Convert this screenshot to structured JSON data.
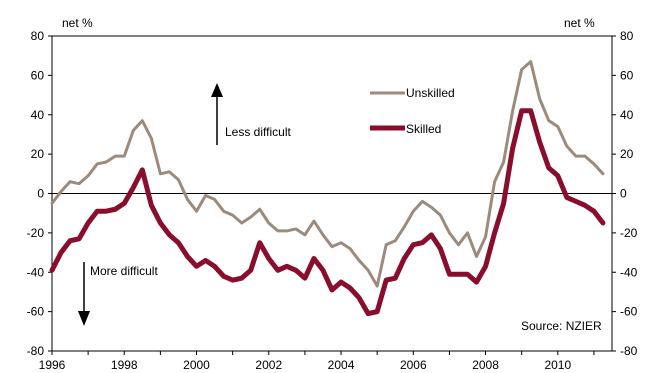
{
  "chart_data": {
    "type": "line",
    "title": "",
    "ylabel_left": "net %",
    "ylabel_right": "net %",
    "xlabel": "",
    "x_ticks": [
      "1996",
      "1998",
      "2000",
      "2002",
      "2004",
      "2006",
      "2008",
      "2010"
    ],
    "ylim": [
      -80,
      80
    ],
    "y_ticks": [
      -80,
      -60,
      -40,
      -20,
      0,
      20,
      40,
      60,
      80
    ],
    "xlim": [
      1996,
      2011.5
    ],
    "grid": false,
    "zero_line": true,
    "legend_position": "top-center",
    "series": [
      {
        "name": "Unskilled",
        "color": "#9c8b7d",
        "points": [
          [
            1996.0,
            -5
          ],
          [
            1996.25,
            1
          ],
          [
            1996.5,
            6
          ],
          [
            1996.75,
            5
          ],
          [
            1997.0,
            9
          ],
          [
            1997.25,
            15
          ],
          [
            1997.5,
            16
          ],
          [
            1997.75,
            19
          ],
          [
            1998.0,
            19
          ],
          [
            1998.25,
            32
          ],
          [
            1998.5,
            37
          ],
          [
            1998.75,
            28
          ],
          [
            1999.0,
            10
          ],
          [
            1999.25,
            11
          ],
          [
            1999.5,
            7
          ],
          [
            1999.75,
            -3
          ],
          [
            2000.0,
            -9
          ],
          [
            2000.25,
            -1
          ],
          [
            2000.5,
            -3
          ],
          [
            2000.75,
            -9
          ],
          [
            2001.0,
            -11
          ],
          [
            2001.25,
            -15
          ],
          [
            2001.5,
            -12
          ],
          [
            2001.75,
            -8
          ],
          [
            2002.0,
            -15
          ],
          [
            2002.25,
            -19
          ],
          [
            2002.5,
            -19
          ],
          [
            2002.75,
            -18
          ],
          [
            2003.0,
            -21
          ],
          [
            2003.25,
            -14
          ],
          [
            2003.5,
            -21
          ],
          [
            2003.75,
            -27
          ],
          [
            2004.0,
            -25
          ],
          [
            2004.25,
            -28
          ],
          [
            2004.5,
            -34
          ],
          [
            2004.75,
            -39
          ],
          [
            2005.0,
            -47
          ],
          [
            2005.25,
            -26
          ],
          [
            2005.5,
            -24
          ],
          [
            2005.75,
            -17
          ],
          [
            2006.0,
            -9
          ],
          [
            2006.25,
            -4
          ],
          [
            2006.5,
            -7
          ],
          [
            2006.75,
            -11
          ],
          [
            2007.0,
            -20
          ],
          [
            2007.25,
            -26
          ],
          [
            2007.5,
            -20
          ],
          [
            2007.75,
            -32
          ],
          [
            2008.0,
            -22
          ],
          [
            2008.25,
            6
          ],
          [
            2008.5,
            16
          ],
          [
            2008.75,
            42
          ],
          [
            2009.0,
            63
          ],
          [
            2009.25,
            67
          ],
          [
            2009.5,
            48
          ],
          [
            2009.75,
            37
          ],
          [
            2010.0,
            34
          ],
          [
            2010.25,
            24
          ],
          [
            2010.5,
            19
          ],
          [
            2010.75,
            19
          ],
          [
            2011.0,
            15
          ],
          [
            2011.25,
            10
          ]
        ]
      },
      {
        "name": "Skilled",
        "color": "#8b0d2e",
        "points": [
          [
            1996.0,
            -39
          ],
          [
            1996.25,
            -30
          ],
          [
            1996.5,
            -24
          ],
          [
            1996.75,
            -23
          ],
          [
            1997.0,
            -15
          ],
          [
            1997.25,
            -9
          ],
          [
            1997.5,
            -9
          ],
          [
            1997.75,
            -8
          ],
          [
            1998.0,
            -5
          ],
          [
            1998.25,
            3
          ],
          [
            1998.5,
            12
          ],
          [
            1998.75,
            -6
          ],
          [
            1999.0,
            -15
          ],
          [
            1999.25,
            -21
          ],
          [
            1999.5,
            -25
          ],
          [
            1999.75,
            -32
          ],
          [
            2000.0,
            -37
          ],
          [
            2000.25,
            -34
          ],
          [
            2000.5,
            -37
          ],
          [
            2000.75,
            -42
          ],
          [
            2001.0,
            -44
          ],
          [
            2001.25,
            -43
          ],
          [
            2001.5,
            -39
          ],
          [
            2001.75,
            -25
          ],
          [
            2002.0,
            -33
          ],
          [
            2002.25,
            -39
          ],
          [
            2002.5,
            -37
          ],
          [
            2002.75,
            -39
          ],
          [
            2003.0,
            -43
          ],
          [
            2003.25,
            -33
          ],
          [
            2003.5,
            -39
          ],
          [
            2003.75,
            -49
          ],
          [
            2004.0,
            -45
          ],
          [
            2004.25,
            -48
          ],
          [
            2004.5,
            -53
          ],
          [
            2004.75,
            -61
          ],
          [
            2005.0,
            -60
          ],
          [
            2005.25,
            -44
          ],
          [
            2005.5,
            -43
          ],
          [
            2005.75,
            -33
          ],
          [
            2006.0,
            -26
          ],
          [
            2006.25,
            -25
          ],
          [
            2006.5,
            -21
          ],
          [
            2006.75,
            -28
          ],
          [
            2007.0,
            -41
          ],
          [
            2007.25,
            -41
          ],
          [
            2007.5,
            -41
          ],
          [
            2007.75,
            -45
          ],
          [
            2008.0,
            -37
          ],
          [
            2008.25,
            -20
          ],
          [
            2008.5,
            -5
          ],
          [
            2008.75,
            23
          ],
          [
            2009.0,
            42
          ],
          [
            2009.25,
            42
          ],
          [
            2009.5,
            26
          ],
          [
            2009.75,
            13
          ],
          [
            2010.0,
            9
          ],
          [
            2010.25,
            -2
          ],
          [
            2010.5,
            -4
          ],
          [
            2010.75,
            -6
          ],
          [
            2011.0,
            -9
          ],
          [
            2011.25,
            -15
          ]
        ]
      }
    ],
    "annotations": {
      "less_difficult": "Less difficult",
      "more_difficult": "More difficult",
      "source": "Source:  NZIER"
    }
  }
}
